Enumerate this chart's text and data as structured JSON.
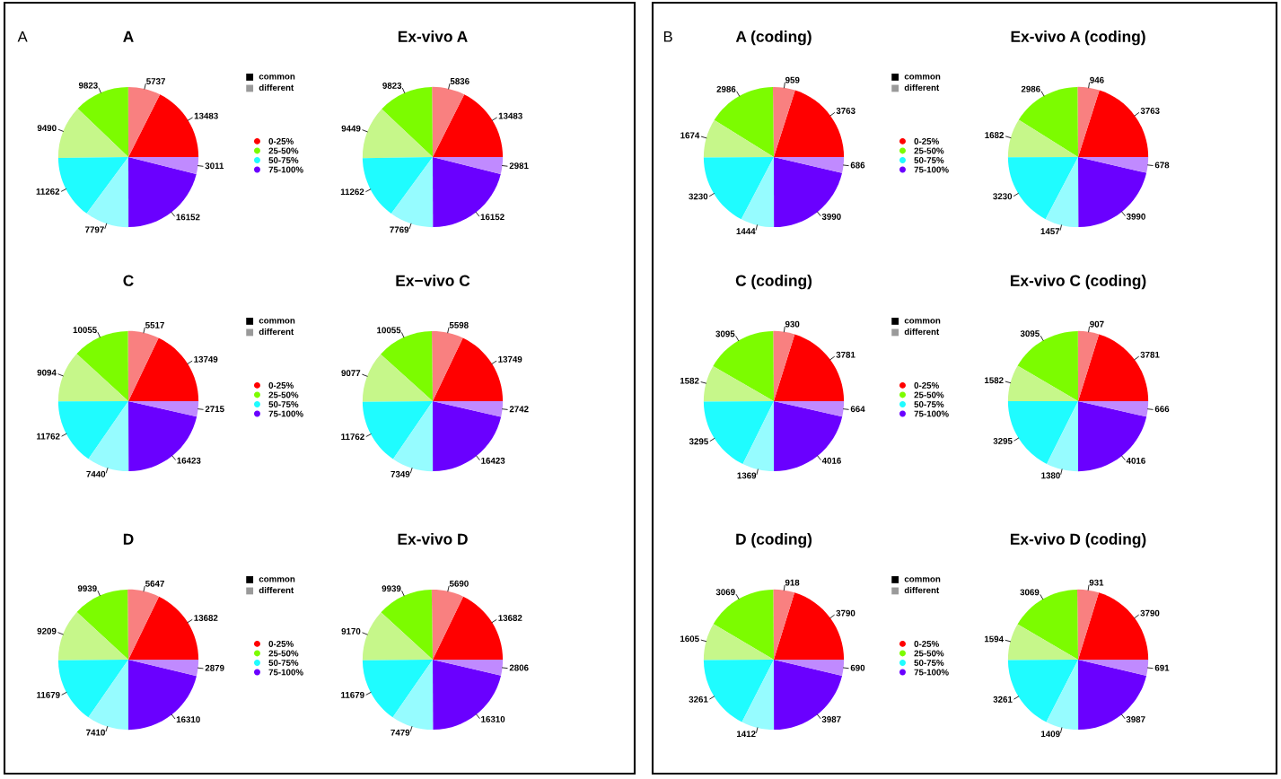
{
  "chart_data": [
    {
      "type": "pie",
      "title": "A",
      "annotations": [
        "A",
        "common",
        "different"
      ],
      "legend": "right",
      "data_labels": true,
      "categories": [
        "0-25%",
        null,
        "25-50%",
        null,
        "50-75%",
        null,
        "75-100%",
        null
      ],
      "colors": [
        "#ff0000",
        "#f98080",
        "#7cfc00",
        "#c6f78a",
        "#1ffcff",
        "#96fcff",
        "#6a00ff",
        "#c08aff"
      ],
      "values": [
        13483,
        5737,
        9823,
        9490,
        11262,
        7797,
        16152,
        3011
      ]
    },
    {
      "type": "pie",
      "title": "Ex-vivo A",
      "data_labels": true,
      "categories": [
        null,
        null,
        null,
        null,
        null,
        null,
        null,
        null
      ],
      "colors": [
        "#ff0000",
        "#f98080",
        "#7cfc00",
        "#c6f78a",
        "#1ffcff",
        "#96fcff",
        "#6a00ff",
        "#c08aff"
      ],
      "values": [
        13483,
        5836,
        9823,
        9449,
        11262,
        7769,
        16152,
        2981
      ]
    },
    {
      "type": "pie",
      "title": "C",
      "annotations": [
        "common",
        "different"
      ],
      "legend": "right",
      "data_labels": true,
      "categories": [
        "0-25%",
        null,
        "25-50%",
        null,
        "50-75%",
        null,
        "75-100%",
        null
      ],
      "colors": [
        "#ff0000",
        "#f98080",
        "#7cfc00",
        "#c6f78a",
        "#1ffcff",
        "#96fcff",
        "#6a00ff",
        "#c08aff"
      ],
      "values": [
        13749,
        5517,
        10055,
        9094,
        11762,
        7440,
        16423,
        2715
      ]
    },
    {
      "type": "pie",
      "title": "Ex−vivo C",
      "data_labels": true,
      "categories": [
        null,
        null,
        null,
        null,
        null,
        null,
        null,
        null
      ],
      "colors": [
        "#ff0000",
        "#f98080",
        "#7cfc00",
        "#c6f78a",
        "#1ffcff",
        "#96fcff",
        "#6a00ff",
        "#c08aff"
      ],
      "values": [
        13749,
        5598,
        10055,
        9077,
        11762,
        7349,
        16423,
        2742
      ]
    },
    {
      "type": "pie",
      "title": "D",
      "annotations": [
        "common",
        "different"
      ],
      "legend": "right",
      "data_labels": true,
      "categories": [
        "0-25%",
        null,
        "25-50%",
        null,
        "50-75%",
        null,
        "75-100%",
        null
      ],
      "colors": [
        "#ff0000",
        "#f98080",
        "#7cfc00",
        "#c6f78a",
        "#1ffcff",
        "#96fcff",
        "#6a00ff",
        "#c08aff"
      ],
      "values": [
        13682,
        5647,
        9939,
        9209,
        11679,
        7410,
        16310,
        2879
      ]
    },
    {
      "type": "pie",
      "title": "Ex-vivo D",
      "data_labels": true,
      "categories": [
        null,
        null,
        null,
        null,
        null,
        null,
        null,
        null
      ],
      "colors": [
        "#ff0000",
        "#f98080",
        "#7cfc00",
        "#c6f78a",
        "#1ffcff",
        "#96fcff",
        "#6a00ff",
        "#c08aff"
      ],
      "values": [
        13682,
        5690,
        9939,
        9170,
        11679,
        7479,
        16310,
        2806
      ]
    },
    {
      "type": "pie",
      "title": "A (coding)",
      "annotations": [
        "B",
        "common",
        "different"
      ],
      "legend": "right",
      "data_labels": true,
      "categories": [
        "0-25%",
        null,
        "25-50%",
        null,
        "50-75%",
        null,
        "75-100%",
        null
      ],
      "colors": [
        "#ff0000",
        "#f98080",
        "#7cfc00",
        "#c6f78a",
        "#1ffcff",
        "#96fcff",
        "#6a00ff",
        "#c08aff"
      ],
      "values": [
        3763,
        959,
        2986,
        1674,
        3230,
        1444,
        3990,
        686
      ]
    },
    {
      "type": "pie",
      "title": "Ex-vivo A (coding)",
      "data_labels": true,
      "categories": [
        null,
        null,
        null,
        null,
        null,
        null,
        null,
        null
      ],
      "colors": [
        "#ff0000",
        "#f98080",
        "#7cfc00",
        "#c6f78a",
        "#1ffcff",
        "#96fcff",
        "#6a00ff",
        "#c08aff"
      ],
      "values": [
        3763,
        946,
        2986,
        1682,
        3230,
        1457,
        3990,
        678
      ]
    },
    {
      "type": "pie",
      "title": "C (coding)",
      "annotations": [
        "common",
        "different"
      ],
      "legend": "right",
      "data_labels": true,
      "categories": [
        "0-25%",
        null,
        "25-50%",
        null,
        "50-75%",
        null,
        "75-100%",
        null
      ],
      "colors": [
        "#ff0000",
        "#f98080",
        "#7cfc00",
        "#c6f78a",
        "#1ffcff",
        "#96fcff",
        "#6a00ff",
        "#c08aff"
      ],
      "values": [
        3781,
        930,
        3095,
        1582,
        3295,
        1369,
        4016,
        664
      ]
    },
    {
      "type": "pie",
      "title": "Ex-vivo C (coding)",
      "data_labels": true,
      "categories": [
        null,
        null,
        null,
        null,
        null,
        null,
        null,
        null
      ],
      "colors": [
        "#ff0000",
        "#f98080",
        "#7cfc00",
        "#c6f78a",
        "#1ffcff",
        "#96fcff",
        "#6a00ff",
        "#c08aff"
      ],
      "values": [
        3781,
        907,
        3095,
        1582,
        3295,
        1380,
        4016,
        666
      ]
    },
    {
      "type": "pie",
      "title": "D (coding)",
      "annotations": [
        "common",
        "different"
      ],
      "legend": "right",
      "data_labels": true,
      "categories": [
        "0-25%",
        null,
        "25-50%",
        null,
        "50-75%",
        null,
        "75-100%",
        null
      ],
      "colors": [
        "#ff0000",
        "#f98080",
        "#7cfc00",
        "#c6f78a",
        "#1ffcff",
        "#96fcff",
        "#6a00ff",
        "#c08aff"
      ],
      "values": [
        3790,
        918,
        3069,
        1605,
        3261,
        1412,
        3987,
        690
      ]
    },
    {
      "type": "pie",
      "title": "Ex-vivo D (coding)",
      "data_labels": true,
      "categories": [
        null,
        null,
        null,
        null,
        null,
        null,
        null,
        null
      ],
      "colors": [
        "#ff0000",
        "#f98080",
        "#7cfc00",
        "#c6f78a",
        "#1ffcff",
        "#96fcff",
        "#6a00ff",
        "#c08aff"
      ],
      "values": [
        3790,
        931,
        3069,
        1594,
        3261,
        1409,
        3987,
        691
      ]
    }
  ]
}
